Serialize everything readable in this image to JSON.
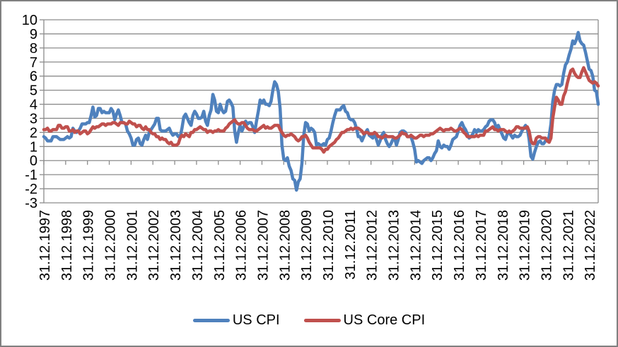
{
  "chart_data": {
    "type": "line",
    "title": "",
    "xlabel": "",
    "ylabel": "",
    "ylim": [
      -3,
      10
    ],
    "y_tick_step": 1,
    "y_tick_labels": [
      "10",
      "9",
      "8",
      "7",
      "6",
      "5",
      "4",
      "3",
      "2",
      "1",
      "0",
      "-1",
      "-2",
      "-3"
    ],
    "x_tick_labels": [
      "31.12.1997",
      "31.12.1998",
      "31.12.1999",
      "31.12.2000",
      "31.12.2001",
      "31.12.2002",
      "31.12.2003",
      "31.12.2004",
      "31.12.2005",
      "31.12.2006",
      "31.12.2007",
      "31.12.2008",
      "31.12.2009",
      "31.12.2010",
      "31.12.2011",
      "31.12.2012",
      "31.12.2013",
      "31.12.2014",
      "31.12.2015",
      "31.12.2016",
      "31.12.2017",
      "31.12.2018",
      "31.12.2019",
      "31.12.2020",
      "31.12.2021",
      "31.12.2022"
    ],
    "x_label_every_n_points": 12,
    "frequency": "monthly",
    "grid": true,
    "legend_position": "bottom",
    "series": [
      {
        "name": "US CPI",
        "color": "#4F81BD",
        "values": [
          1.7,
          1.6,
          1.4,
          1.4,
          1.4,
          1.7,
          1.7,
          1.7,
          1.6,
          1.5,
          1.5,
          1.5,
          1.6,
          1.7,
          1.6,
          1.7,
          2.3,
          2.1,
          2.0,
          2.1,
          2.3,
          2.6,
          2.6,
          2.6,
          2.7,
          2.7,
          3.2,
          3.8,
          3.1,
          3.2,
          3.7,
          3.7,
          3.4,
          3.5,
          3.4,
          3.4,
          3.4,
          3.7,
          3.5,
          2.9,
          3.3,
          3.6,
          3.2,
          2.7,
          2.7,
          2.6,
          2.1,
          1.9,
          1.6,
          1.1,
          1.1,
          1.5,
          1.6,
          1.2,
          1.1,
          1.5,
          1.8,
          1.5,
          2.0,
          2.2,
          2.4,
          2.6,
          3.0,
          3.0,
          2.2,
          2.1,
          2.1,
          2.1,
          2.2,
          2.3,
          2.0,
          1.8,
          1.9,
          1.9,
          1.7,
          1.7,
          2.3,
          3.1,
          3.3,
          3.0,
          2.7,
          2.5,
          3.2,
          3.5,
          3.3,
          3.0,
          3.0,
          3.1,
          3.5,
          2.8,
          2.5,
          3.2,
          3.6,
          4.7,
          4.3,
          3.5,
          3.4,
          4.0,
          3.6,
          3.4,
          3.5,
          4.2,
          4.3,
          4.1,
          3.8,
          2.1,
          1.3,
          2.0,
          2.5,
          2.1,
          2.4,
          2.8,
          2.6,
          2.7,
          2.7,
          2.4,
          2.0,
          2.8,
          3.5,
          4.3,
          4.1,
          4.3,
          4.0,
          4.0,
          3.9,
          4.2,
          5.0,
          5.6,
          5.4,
          4.9,
          3.7,
          1.1,
          0.1,
          0.0,
          0.2,
          -0.4,
          -0.7,
          -1.3,
          -1.4,
          -2.1,
          -1.5,
          -1.3,
          -0.2,
          1.8,
          2.7,
          2.6,
          2.1,
          2.3,
          2.2,
          2.0,
          1.1,
          1.2,
          1.1,
          1.1,
          1.2,
          1.1,
          1.5,
          1.6,
          2.1,
          2.7,
          3.2,
          3.6,
          3.6,
          3.6,
          3.8,
          3.9,
          3.5,
          3.4,
          3.0,
          2.9,
          2.9,
          2.7,
          2.3,
          1.7,
          1.7,
          1.4,
          1.7,
          2.0,
          2.2,
          1.8,
          1.7,
          1.6,
          2.0,
          1.5,
          1.1,
          1.4,
          1.8,
          2.0,
          1.5,
          1.2,
          1.0,
          1.2,
          1.5,
          1.6,
          1.1,
          1.5,
          2.0,
          2.1,
          2.1,
          2.0,
          1.7,
          1.7,
          1.7,
          1.3,
          0.8,
          -0.1,
          0.0,
          -0.1,
          -0.2,
          0.0,
          0.1,
          0.2,
          0.2,
          0.0,
          0.2,
          0.5,
          0.7,
          1.4,
          1.0,
          0.9,
          1.1,
          1.0,
          1.0,
          0.8,
          1.1,
          1.5,
          1.6,
          1.7,
          2.1,
          2.5,
          2.7,
          2.4,
          2.2,
          1.9,
          1.6,
          1.7,
          1.9,
          2.2,
          2.0,
          2.2,
          2.1,
          2.1,
          2.2,
          2.4,
          2.5,
          2.8,
          2.9,
          2.9,
          2.7,
          2.3,
          2.5,
          2.2,
          1.9,
          1.6,
          1.5,
          1.9,
          2.0,
          1.8,
          1.6,
          1.8,
          1.7,
          1.7,
          1.8,
          2.1,
          2.3,
          2.5,
          2.3,
          1.5,
          0.3,
          0.1,
          0.6,
          1.0,
          1.3,
          1.4,
          1.2,
          1.2,
          1.4,
          1.4,
          1.7,
          2.6,
          4.2,
          5.0,
          5.4,
          5.4,
          5.3,
          5.4,
          6.2,
          6.8,
          7.0,
          7.5,
          7.9,
          8.5,
          8.3,
          8.6,
          9.1,
          8.5,
          8.3,
          8.2,
          7.7,
          7.1,
          6.5,
          6.4,
          6.0,
          5.0,
          4.9,
          4.0
        ]
      },
      {
        "name": "US Core CPI",
        "color": "#C0504D",
        "values": [
          2.2,
          2.2,
          2.3,
          2.1,
          2.1,
          2.2,
          2.2,
          2.2,
          2.5,
          2.5,
          2.3,
          2.3,
          2.4,
          2.4,
          2.1,
          2.1,
          2.2,
          2.0,
          2.1,
          2.1,
          1.9,
          2.0,
          2.1,
          2.1,
          1.9,
          2.0,
          2.2,
          2.4,
          2.3,
          2.4,
          2.4,
          2.5,
          2.6,
          2.6,
          2.5,
          2.6,
          2.6,
          2.6,
          2.7,
          2.7,
          2.6,
          2.5,
          2.7,
          2.7,
          2.7,
          2.6,
          2.6,
          2.8,
          2.7,
          2.6,
          2.6,
          2.4,
          2.5,
          2.5,
          2.3,
          2.2,
          2.4,
          2.2,
          2.2,
          2.0,
          1.9,
          1.9,
          1.7,
          1.7,
          1.5,
          1.6,
          1.5,
          1.5,
          1.3,
          1.2,
          1.3,
          1.1,
          1.1,
          1.1,
          1.2,
          1.6,
          1.8,
          1.7,
          1.9,
          1.8,
          1.7,
          2.0,
          2.0,
          2.2,
          2.2,
          2.3,
          2.4,
          2.3,
          2.2,
          2.2,
          2.0,
          2.1,
          2.1,
          2.0,
          2.1,
          2.1,
          2.2,
          2.1,
          2.1,
          2.1,
          2.3,
          2.4,
          2.6,
          2.7,
          2.8,
          2.9,
          2.7,
          2.6,
          2.6,
          2.7,
          2.7,
          2.5,
          2.3,
          2.2,
          2.2,
          2.2,
          2.1,
          2.1,
          2.2,
          2.3,
          2.4,
          2.5,
          2.3,
          2.4,
          2.3,
          2.3,
          2.4,
          2.5,
          2.5,
          2.5,
          2.2,
          2.0,
          1.8,
          1.7,
          1.8,
          1.8,
          1.9,
          1.8,
          1.7,
          1.5,
          1.4,
          1.5,
          1.7,
          1.7,
          1.8,
          1.6,
          1.3,
          1.1,
          0.9,
          0.9,
          0.9,
          0.9,
          0.9,
          0.8,
          0.6,
          0.8,
          0.8,
          1.0,
          1.1,
          1.2,
          1.3,
          1.5,
          1.6,
          1.8,
          2.0,
          2.0,
          2.1,
          2.2,
          2.2,
          2.3,
          2.2,
          2.3,
          2.3,
          2.3,
          2.2,
          2.1,
          1.9,
          2.0,
          2.0,
          1.9,
          1.9,
          1.9,
          2.0,
          1.9,
          1.7,
          1.7,
          1.6,
          1.7,
          1.8,
          1.7,
          1.7,
          1.7,
          1.7,
          1.6,
          1.6,
          1.7,
          1.8,
          2.0,
          1.9,
          1.9,
          1.7,
          1.7,
          1.8,
          1.7,
          1.6,
          1.6,
          1.7,
          1.8,
          1.8,
          1.7,
          1.8,
          1.8,
          1.8,
          1.9,
          1.9,
          2.0,
          2.1,
          2.2,
          2.3,
          2.2,
          2.1,
          2.2,
          2.2,
          2.2,
          2.3,
          2.2,
          2.1,
          2.1,
          2.2,
          2.3,
          2.2,
          2.0,
          1.9,
          1.7,
          1.7,
          1.7,
          1.7,
          1.7,
          1.8,
          1.7,
          1.8,
          1.8,
          1.8,
          2.1,
          2.1,
          2.2,
          2.3,
          2.4,
          2.2,
          2.2,
          2.1,
          2.2,
          2.2,
          2.2,
          2.1,
          2.0,
          2.1,
          2.0,
          2.1,
          2.2,
          2.4,
          2.4,
          2.3,
          2.3,
          2.3,
          2.3,
          2.4,
          2.1,
          1.4,
          1.2,
          1.2,
          1.6,
          1.7,
          1.7,
          1.6,
          1.6,
          1.6,
          1.4,
          1.3,
          1.6,
          3.0,
          3.8,
          4.5,
          4.3,
          4.0,
          4.0,
          4.6,
          4.9,
          5.5,
          6.0,
          6.4,
          6.5,
          6.2,
          6.0,
          5.9,
          5.9,
          6.3,
          6.6,
          6.3,
          6.0,
          5.7,
          5.6,
          5.5,
          5.6,
          5.5,
          5.3
        ]
      }
    ]
  },
  "style": {
    "gridline_color": "#8C8C8C",
    "axis_color": "#8C8C8C",
    "frame_border_color": "#808080",
    "text_color": "#000000"
  }
}
